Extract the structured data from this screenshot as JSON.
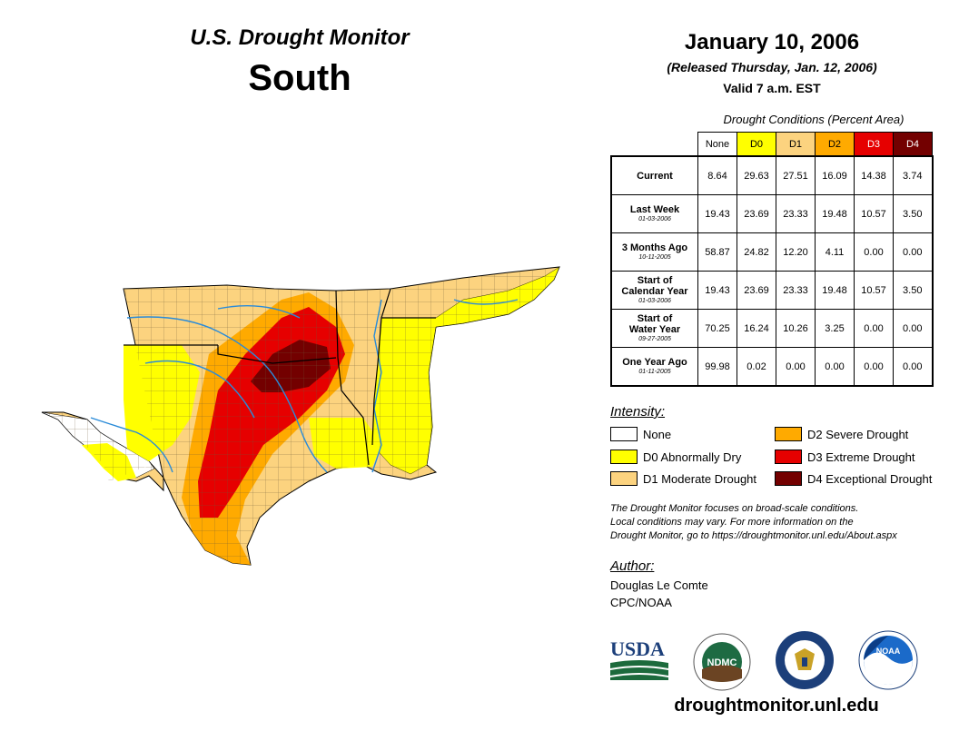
{
  "header": {
    "title": "U.S. Drought Monitor",
    "region": "South"
  },
  "date": {
    "main": "January 10, 2006",
    "released": "(Released Thursday, Jan. 12, 2006)",
    "valid": "Valid 7 a.m. EST"
  },
  "table": {
    "caption": "Drought Conditions (Percent Area)",
    "columns": [
      {
        "label": "None",
        "color": "#ffffff"
      },
      {
        "label": "D0",
        "color": "#ffff00"
      },
      {
        "label": "D1",
        "color": "#fcd37f"
      },
      {
        "label": "D2",
        "color": "#ffaa00"
      },
      {
        "label": "D3",
        "color": "#e60000"
      },
      {
        "label": "D4",
        "color": "#730000"
      }
    ],
    "rows": [
      {
        "label1": "Current",
        "label2": "",
        "date": "",
        "values": [
          "8.64",
          "29.63",
          "27.51",
          "16.09",
          "14.38",
          "3.74"
        ]
      },
      {
        "label1": "Last Week",
        "label2": "",
        "date": "01-03-2006",
        "values": [
          "19.43",
          "23.69",
          "23.33",
          "19.48",
          "10.57",
          "3.50"
        ]
      },
      {
        "label1": "3 Months Ago",
        "label2": "",
        "date": "10-11-2005",
        "values": [
          "58.87",
          "24.82",
          "12.20",
          "4.11",
          "0.00",
          "0.00"
        ]
      },
      {
        "label1": "Start of",
        "label2": "Calendar Year",
        "date": "01-03-2006",
        "values": [
          "19.43",
          "23.69",
          "23.33",
          "19.48",
          "10.57",
          "3.50"
        ]
      },
      {
        "label1": "Start of",
        "label2": "Water Year",
        "date": "09-27-2005",
        "values": [
          "70.25",
          "16.24",
          "10.26",
          "3.25",
          "0.00",
          "0.00"
        ]
      },
      {
        "label1": "One Year Ago",
        "label2": "",
        "date": "01-11-2005",
        "values": [
          "99.98",
          "0.02",
          "0.00",
          "0.00",
          "0.00",
          "0.00"
        ]
      }
    ]
  },
  "legend": {
    "title": "Intensity:",
    "items": [
      {
        "label": "None",
        "color": "#ffffff"
      },
      {
        "label": "D0 Abnormally Dry",
        "color": "#ffff00"
      },
      {
        "label": "D1 Moderate Drought",
        "color": "#fcd37f"
      },
      {
        "label": "D2 Severe Drought",
        "color": "#ffaa00"
      },
      {
        "label": "D3 Extreme Drought",
        "color": "#e60000"
      },
      {
        "label": "D4 Exceptional Drought",
        "color": "#730000"
      }
    ]
  },
  "note": {
    "line1": "The Drought Monitor focuses on broad-scale conditions.",
    "line2": "Local conditions may vary. For more information on the",
    "line3": "Drought Monitor, go to https://droughtmonitor.unl.edu/About.aspx"
  },
  "author": {
    "title": "Author:",
    "name": "Douglas Le Comte",
    "org": "CPC/NOAA"
  },
  "logos": {
    "usda": "USDA",
    "ndmc": "NDMC",
    "noaa": "NOAA"
  },
  "url": "droughtmonitor.unl.edu"
}
